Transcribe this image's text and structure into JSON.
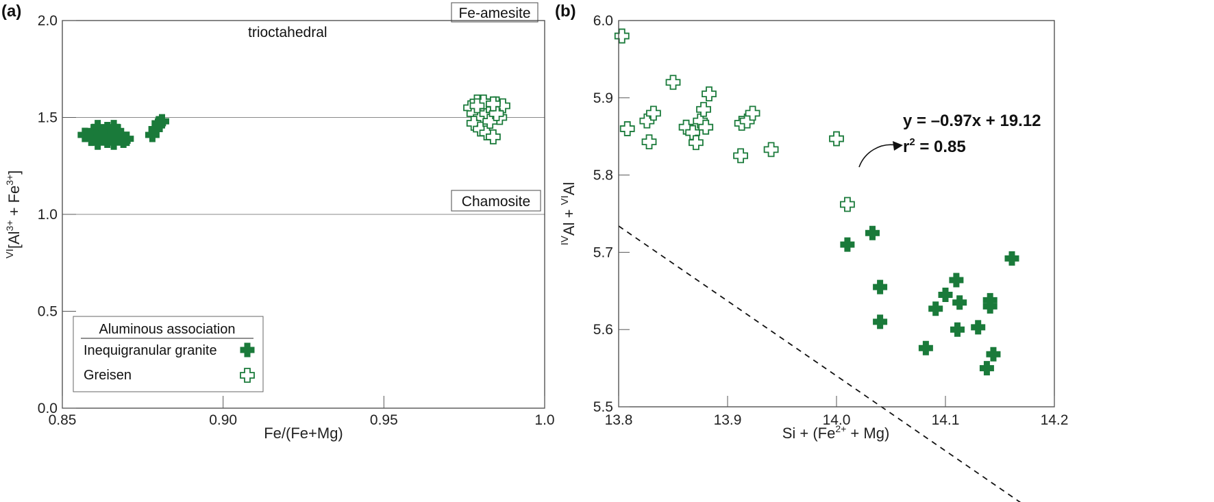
{
  "colors": {
    "marker": "#1a7a3a",
    "text": "#111111"
  },
  "chart_data": [
    {
      "panel": "(a)",
      "type": "scatter",
      "xlabel": "Fe/(Fe+Mg)",
      "ylabel": "VI[Al3+ + Fe3+]",
      "xlim": [
        0.85,
        1.0
      ],
      "ylim": [
        0.0,
        2.0
      ],
      "xticks": [
        "0.85",
        "0.90",
        "0.95",
        "1.0"
      ],
      "yticks": [
        "0.0",
        "0.5",
        "1.0",
        "1.5",
        "2.0"
      ],
      "annotations": {
        "top_left": "trioctahedral",
        "top_right": "Fe-amesite",
        "right": "Chamosite"
      },
      "legend": {
        "title": "Aluminous association",
        "items": [
          "Inequigranular granite",
          "Greisen"
        ],
        "position": "bottom-left"
      },
      "series": [
        {
          "name": "Inequigranular granite",
          "marker": "filled-cross",
          "x": [
            0.857,
            0.859,
            0.86,
            0.861,
            0.861,
            0.862,
            0.863,
            0.864,
            0.864,
            0.865,
            0.866,
            0.866,
            0.867,
            0.868,
            0.869,
            0.87,
            0.862,
            0.865,
            0.878,
            0.879,
            0.88,
            0.881
          ],
          "y": [
            1.41,
            1.39,
            1.43,
            1.45,
            1.37,
            1.4,
            1.42,
            1.38,
            1.44,
            1.41,
            1.37,
            1.45,
            1.43,
            1.4,
            1.38,
            1.39,
            1.42,
            1.4,
            1.41,
            1.44,
            1.47,
            1.48
          ]
        },
        {
          "name": "Greisen",
          "marker": "open-cross",
          "x": [
            0.977,
            0.978,
            0.979,
            0.98,
            0.981,
            0.982,
            0.983,
            0.984,
            0.985,
            0.987,
            0.978,
            0.98,
            0.982,
            0.984,
            0.986,
            0.981,
            0.983,
            0.985,
            0.979,
            0.984
          ],
          "y": [
            1.55,
            1.52,
            1.58,
            1.5,
            1.55,
            1.52,
            1.56,
            1.54,
            1.57,
            1.56,
            1.47,
            1.44,
            1.42,
            1.4,
            1.5,
            1.58,
            1.48,
            1.52,
            1.56,
            1.57
          ]
        }
      ]
    },
    {
      "panel": "(b)",
      "type": "scatter",
      "xlabel": "Si + (Fe2+ + Mg)",
      "ylabel": "IVAl + VIAl",
      "xlim": [
        13.8,
        14.2
      ],
      "ylim": [
        5.5,
        6.0
      ],
      "xticks": [
        "13.8",
        "13.9",
        "14.0",
        "14.1",
        "14.2"
      ],
      "yticks": [
        "5.5",
        "5.6",
        "5.7",
        "5.8",
        "5.9",
        "6.0"
      ],
      "trendline": {
        "slope": -0.97,
        "intercept": 19.12,
        "x_range": [
          13.8,
          14.18
        ],
        "style": "dashed"
      },
      "equation": {
        "line1": "y = –0.97x + 19.12",
        "line2_prefix": "r",
        "line2_sup": "2",
        "line2_suffix": " = 0.85"
      },
      "series": [
        {
          "name": "Greisen",
          "marker": "open-cross",
          "x": [
            13.803,
            13.808,
            13.826,
            13.828,
            13.832,
            13.85,
            13.862,
            13.868,
            13.871,
            13.875,
            13.878,
            13.88,
            13.883,
            13.912,
            13.913,
            13.918,
            13.923,
            13.94,
            14.0,
            14.01
          ],
          "y": [
            5.98,
            5.86,
            5.87,
            5.843,
            5.88,
            5.92,
            5.862,
            5.855,
            5.842,
            5.87,
            5.885,
            5.862,
            5.905,
            5.825,
            5.867,
            5.87,
            5.88,
            5.833,
            5.847,
            5.762
          ]
        },
        {
          "name": "Inequigranular granite",
          "marker": "filled-cross",
          "x": [
            14.01,
            14.033,
            14.04,
            14.04,
            14.082,
            14.091,
            14.1,
            14.11,
            14.111,
            14.113,
            14.13,
            14.138,
            14.141,
            14.141,
            14.144,
            14.161
          ],
          "y": [
            5.71,
            5.725,
            5.655,
            5.61,
            5.576,
            5.627,
            5.645,
            5.664,
            5.6,
            5.635,
            5.603,
            5.55,
            5.638,
            5.63,
            5.568,
            5.692
          ]
        }
      ]
    }
  ]
}
